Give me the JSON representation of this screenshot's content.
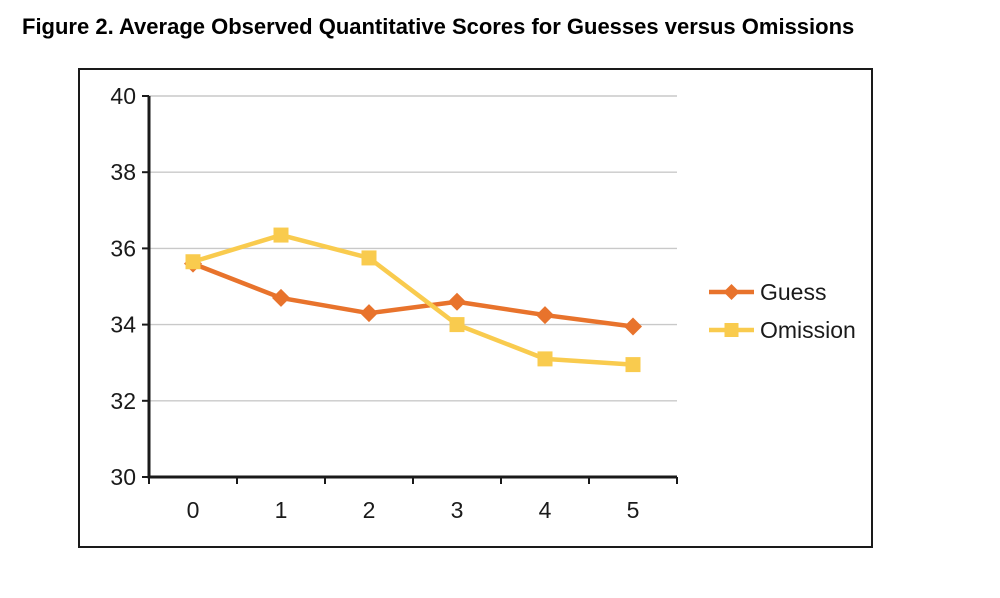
{
  "chart_data": {
    "type": "line",
    "title": "Figure 2. Average Observed Quantitative Scores for Guesses versus Omissions",
    "categories": [
      "0",
      "1",
      "2",
      "3",
      "4",
      "5"
    ],
    "series": [
      {
        "name": "Guess",
        "marker": "diamond",
        "color": "#E8732C",
        "values": [
          35.6,
          34.7,
          34.3,
          34.6,
          34.25,
          33.95
        ]
      },
      {
        "name": "Omission",
        "marker": "square",
        "color": "#F9CB4E",
        "values": [
          35.65,
          36.35,
          35.75,
          34.0,
          33.1,
          32.95
        ]
      }
    ],
    "xlabel": "",
    "ylabel": "",
    "ylim": [
      30,
      40
    ],
    "yticks": [
      30,
      32,
      34,
      36,
      38,
      40
    ],
    "grid": true,
    "legend_position": "right",
    "colors": {
      "axis": "#1a1a1a",
      "gridline": "#c9c9c9",
      "frame_border": "#1a1a1a",
      "background": "#ffffff"
    }
  }
}
